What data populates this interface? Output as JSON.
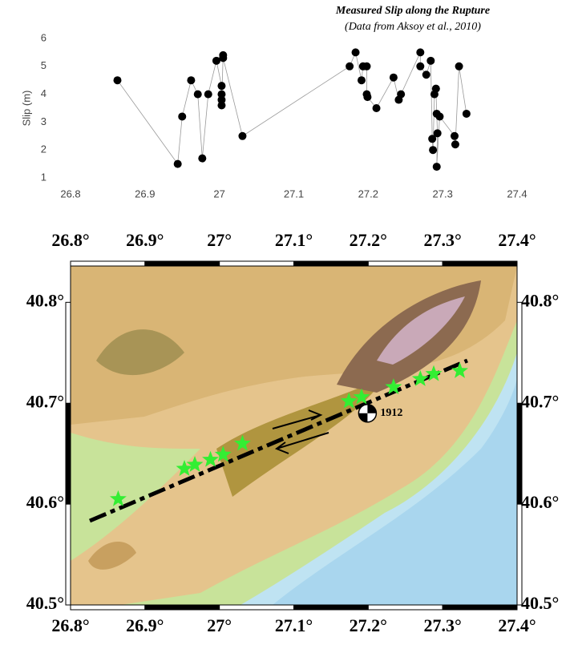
{
  "chart_data": [
    {
      "type": "line",
      "title": "Measured Slip along the Rupture",
      "subtitle": "(Data from Aksoy et al., 2010)",
      "ylabel": "Slip (m)",
      "x": [
        26.863,
        26.944,
        26.95,
        26.962,
        26.971,
        26.977,
        26.985,
        26.996,
        27.003,
        27.003,
        27.003,
        27.003,
        27.005,
        27.005,
        27.031,
        27.175,
        27.183,
        27.191,
        27.193,
        27.198,
        27.198,
        27.199,
        27.211,
        27.234,
        27.241,
        27.244,
        27.27,
        27.27,
        27.278,
        27.284,
        27.286,
        27.287,
        27.289,
        27.291,
        27.292,
        27.293,
        27.292,
        27.296,
        27.316,
        27.317,
        27.322,
        27.332
      ],
      "series": [
        {
          "color": "#000000",
          "values": [
            4.5,
            1.5,
            3.2,
            4.5,
            4.0,
            1.7,
            4.0,
            5.2,
            4.3,
            4.0,
            3.8,
            3.6,
            5.4,
            5.3,
            2.5,
            5.0,
            5.5,
            4.5,
            5.0,
            5.0,
            4.0,
            3.9,
            3.5,
            4.6,
            3.8,
            4.0,
            5.5,
            5.0,
            4.7,
            5.2,
            2.4,
            2.0,
            4.0,
            4.2,
            3.3,
            2.6,
            1.4,
            3.2,
            2.5,
            2.2,
            5.0,
            3.3
          ]
        }
      ],
      "xlim": [
        26.8,
        27.4
      ],
      "xticks": [
        26.8,
        26.9,
        27,
        27.1,
        27.2,
        27.3,
        27.4
      ],
      "ylim": [
        1,
        6
      ],
      "yticks": [
        1,
        2,
        3,
        4,
        5,
        6
      ]
    },
    {
      "type": "map",
      "xlim": [
        26.8,
        27.4
      ],
      "ylim": [
        40.5,
        40.836
      ],
      "xticks": [
        {
          "value": 26.8,
          "label": "26.8°"
        },
        {
          "value": 26.9,
          "label": "26.9°"
        },
        {
          "value": 27,
          "label": "27°"
        },
        {
          "value": 27.1,
          "label": "27.1°"
        },
        {
          "value": 27.2,
          "label": "27.2°"
        },
        {
          "value": 27.3,
          "label": "27.3°"
        },
        {
          "value": 27.4,
          "label": "27.4°"
        }
      ],
      "yticks": [
        {
          "value": 40.5,
          "label": "40.5°"
        },
        {
          "value": 40.6,
          "label": "40.6°"
        },
        {
          "value": 40.7,
          "label": "40.7°"
        },
        {
          "value": 40.8,
          "label": "40.8°"
        }
      ],
      "sites": {
        "color": "#33ee33",
        "x": [
          26.864,
          26.953,
          26.967,
          26.988,
          27.005,
          27.031,
          27.174,
          27.191,
          27.234,
          27.27,
          27.288,
          27.323
        ],
        "y": [
          40.605,
          40.635,
          40.639,
          40.644,
          40.649,
          40.66,
          40.702,
          40.706,
          40.716,
          40.724,
          40.729,
          40.732
        ]
      },
      "event": {
        "label": "1912",
        "x": 27.199,
        "y": 40.69
      }
    }
  ]
}
